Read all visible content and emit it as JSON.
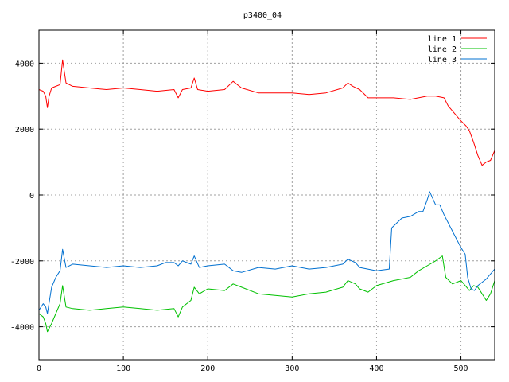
{
  "chart_data": {
    "type": "line",
    "title": "p3400_04",
    "xlabel": "",
    "ylabel": "",
    "xlim": [
      0,
      540
    ],
    "ylim": [
      -5000,
      5000
    ],
    "xticks": [
      0,
      100,
      200,
      300,
      400,
      500
    ],
    "yticks": [
      -4000,
      -2000,
      0,
      2000,
      4000
    ],
    "grid": true,
    "legend_position": "top-right",
    "series": [
      {
        "name": "line 1",
        "color": "#ff0000",
        "points": [
          [
            0,
            3200
          ],
          [
            5,
            3150
          ],
          [
            8,
            3000
          ],
          [
            10,
            2650
          ],
          [
            12,
            3000
          ],
          [
            15,
            3250
          ],
          [
            20,
            3300
          ],
          [
            25,
            3350
          ],
          [
            28,
            4100
          ],
          [
            32,
            3400
          ],
          [
            40,
            3300
          ],
          [
            60,
            3250
          ],
          [
            80,
            3200
          ],
          [
            100,
            3250
          ],
          [
            120,
            3200
          ],
          [
            140,
            3150
          ],
          [
            160,
            3200
          ],
          [
            165,
            2950
          ],
          [
            170,
            3200
          ],
          [
            180,
            3250
          ],
          [
            184,
            3550
          ],
          [
            188,
            3200
          ],
          [
            200,
            3150
          ],
          [
            220,
            3200
          ],
          [
            230,
            3450
          ],
          [
            240,
            3250
          ],
          [
            260,
            3100
          ],
          [
            280,
            3100
          ],
          [
            300,
            3100
          ],
          [
            320,
            3050
          ],
          [
            340,
            3100
          ],
          [
            360,
            3250
          ],
          [
            366,
            3400
          ],
          [
            372,
            3300
          ],
          [
            380,
            3200
          ],
          [
            390,
            2950
          ],
          [
            400,
            2950
          ],
          [
            420,
            2950
          ],
          [
            440,
            2900
          ],
          [
            460,
            3000
          ],
          [
            470,
            3000
          ],
          [
            480,
            2950
          ],
          [
            485,
            2700
          ],
          [
            490,
            2550
          ],
          [
            500,
            2250
          ],
          [
            506,
            2100
          ],
          [
            510,
            1950
          ],
          [
            515,
            1600
          ],
          [
            520,
            1200
          ],
          [
            525,
            900
          ],
          [
            530,
            1000
          ],
          [
            535,
            1050
          ],
          [
            540,
            1350
          ]
        ]
      },
      {
        "name": "line 2",
        "color": "#00c000",
        "points": [
          [
            0,
            -3600
          ],
          [
            5,
            -3700
          ],
          [
            8,
            -3900
          ],
          [
            10,
            -4150
          ],
          [
            15,
            -3900
          ],
          [
            20,
            -3600
          ],
          [
            25,
            -3300
          ],
          [
            28,
            -2750
          ],
          [
            32,
            -3400
          ],
          [
            40,
            -3450
          ],
          [
            60,
            -3500
          ],
          [
            80,
            -3450
          ],
          [
            100,
            -3400
          ],
          [
            120,
            -3450
          ],
          [
            140,
            -3500
          ],
          [
            160,
            -3450
          ],
          [
            165,
            -3700
          ],
          [
            170,
            -3400
          ],
          [
            180,
            -3200
          ],
          [
            184,
            -2800
          ],
          [
            190,
            -3000
          ],
          [
            200,
            -2850
          ],
          [
            220,
            -2900
          ],
          [
            230,
            -2700
          ],
          [
            240,
            -2800
          ],
          [
            260,
            -3000
          ],
          [
            280,
            -3050
          ],
          [
            300,
            -3100
          ],
          [
            320,
            -3000
          ],
          [
            340,
            -2950
          ],
          [
            360,
            -2800
          ],
          [
            366,
            -2600
          ],
          [
            375,
            -2700
          ],
          [
            380,
            -2850
          ],
          [
            390,
            -2950
          ],
          [
            400,
            -2750
          ],
          [
            420,
            -2600
          ],
          [
            440,
            -2500
          ],
          [
            450,
            -2300
          ],
          [
            460,
            -2150
          ],
          [
            470,
            -2000
          ],
          [
            478,
            -1850
          ],
          [
            482,
            -2500
          ],
          [
            490,
            -2700
          ],
          [
            500,
            -2600
          ],
          [
            510,
            -2900
          ],
          [
            515,
            -2750
          ],
          [
            520,
            -2800
          ],
          [
            525,
            -3000
          ],
          [
            530,
            -3200
          ],
          [
            535,
            -3000
          ],
          [
            540,
            -2600
          ]
        ]
      },
      {
        "name": "line 3",
        "color": "#0070d0",
        "points": [
          [
            0,
            -3500
          ],
          [
            5,
            -3300
          ],
          [
            8,
            -3400
          ],
          [
            10,
            -3600
          ],
          [
            15,
            -2800
          ],
          [
            20,
            -2500
          ],
          [
            25,
            -2300
          ],
          [
            28,
            -1650
          ],
          [
            32,
            -2200
          ],
          [
            40,
            -2100
          ],
          [
            60,
            -2150
          ],
          [
            80,
            -2200
          ],
          [
            100,
            -2150
          ],
          [
            120,
            -2200
          ],
          [
            140,
            -2150
          ],
          [
            150,
            -2050
          ],
          [
            160,
            -2050
          ],
          [
            165,
            -2150
          ],
          [
            170,
            -2000
          ],
          [
            180,
            -2100
          ],
          [
            184,
            -1850
          ],
          [
            190,
            -2200
          ],
          [
            200,
            -2150
          ],
          [
            220,
            -2100
          ],
          [
            230,
            -2300
          ],
          [
            240,
            -2350
          ],
          [
            260,
            -2200
          ],
          [
            280,
            -2250
          ],
          [
            300,
            -2150
          ],
          [
            320,
            -2250
          ],
          [
            340,
            -2200
          ],
          [
            360,
            -2100
          ],
          [
            366,
            -1950
          ],
          [
            375,
            -2050
          ],
          [
            380,
            -2200
          ],
          [
            400,
            -2300
          ],
          [
            415,
            -2250
          ],
          [
            418,
            -1000
          ],
          [
            430,
            -700
          ],
          [
            440,
            -650
          ],
          [
            450,
            -500
          ],
          [
            455,
            -500
          ],
          [
            460,
            -150
          ],
          [
            463,
            100
          ],
          [
            470,
            -300
          ],
          [
            475,
            -300
          ],
          [
            480,
            -600
          ],
          [
            490,
            -1100
          ],
          [
            500,
            -1600
          ],
          [
            505,
            -1800
          ],
          [
            508,
            -2500
          ],
          [
            512,
            -2850
          ],
          [
            516,
            -2900
          ],
          [
            520,
            -2750
          ],
          [
            530,
            -2550
          ],
          [
            540,
            -2250
          ]
        ]
      }
    ]
  }
}
